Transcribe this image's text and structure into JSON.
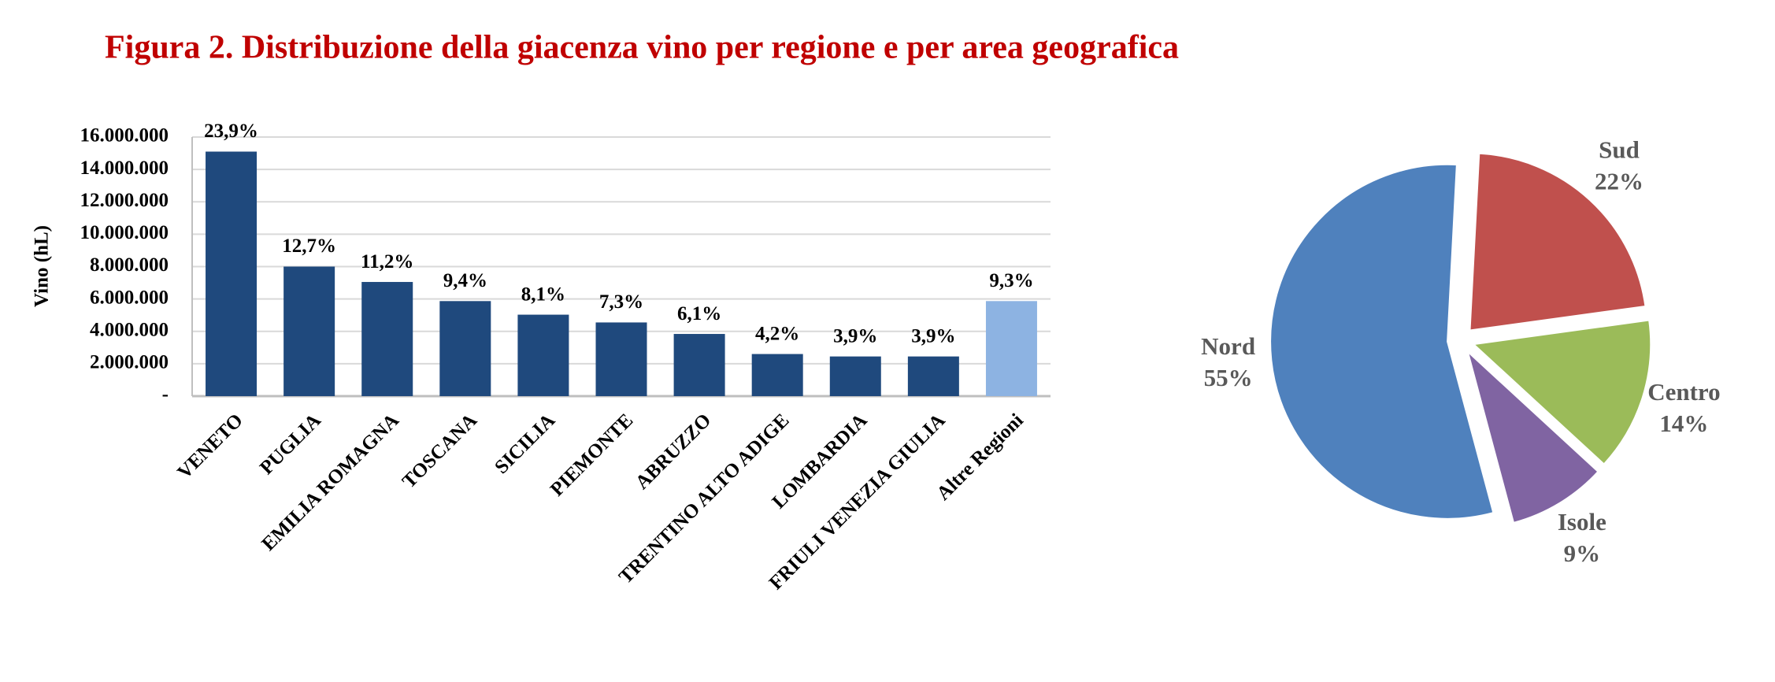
{
  "title": "Figura 2. Distribuzione della giacenza vino per regione e per area geografica",
  "chart_data": [
    {
      "type": "bar",
      "y_label": "Vino (hL)",
      "categories": [
        "VENETO",
        "PUGLIA",
        "EMILIA ROMAGNA",
        "TOSCANA",
        "SICILIA",
        "PIEMONTE",
        "ABRUZZO",
        "TRENTINO ALTO ADIGE",
        "LOMBARDIA",
        "FRIULI VENEZIA GIULIA",
        "Altre Regioni"
      ],
      "values": [
        15100000,
        8000000,
        7050000,
        5870000,
        5030000,
        4550000,
        3840000,
        2600000,
        2450000,
        2450000,
        5870000
      ],
      "labels": [
        "23,9%",
        "12,7%",
        "11,2%",
        "9,4%",
        "8,1%",
        "7,3%",
        "6,1%",
        "4,2%",
        "3,9%",
        "3,9%",
        "9,3%"
      ],
      "colors": [
        "#1f497d",
        "#1f497d",
        "#1f497d",
        "#1f497d",
        "#1f497d",
        "#1f497d",
        "#1f497d",
        "#1f497d",
        "#1f497d",
        "#1f497d",
        "#8db3e2"
      ],
      "ylim": [
        0,
        16000000
      ],
      "yticks": [
        {
          "value": 0,
          "label": "-"
        },
        {
          "value": 2000000,
          "label": "2.000.000"
        },
        {
          "value": 4000000,
          "label": "4.000.000"
        },
        {
          "value": 6000000,
          "label": "6.000.000"
        },
        {
          "value": 8000000,
          "label": "8.000.000"
        },
        {
          "value": 10000000,
          "label": "10.000.000"
        },
        {
          "value": 12000000,
          "label": "12.000.000"
        },
        {
          "value": 14000000,
          "label": "14.000.000"
        },
        {
          "value": 16000000,
          "label": "16.000.000"
        }
      ],
      "grid": true
    },
    {
      "type": "pie",
      "categories": [
        "Sud",
        "Centro",
        "Isole",
        "Nord"
      ],
      "values": [
        22,
        14,
        9,
        55
      ],
      "value_labels": [
        "22%",
        "14%",
        "9%",
        "55%"
      ],
      "colors": [
        "#c0504d",
        "#9bbb59",
        "#8064a2",
        "#4f81bd"
      ]
    }
  ]
}
